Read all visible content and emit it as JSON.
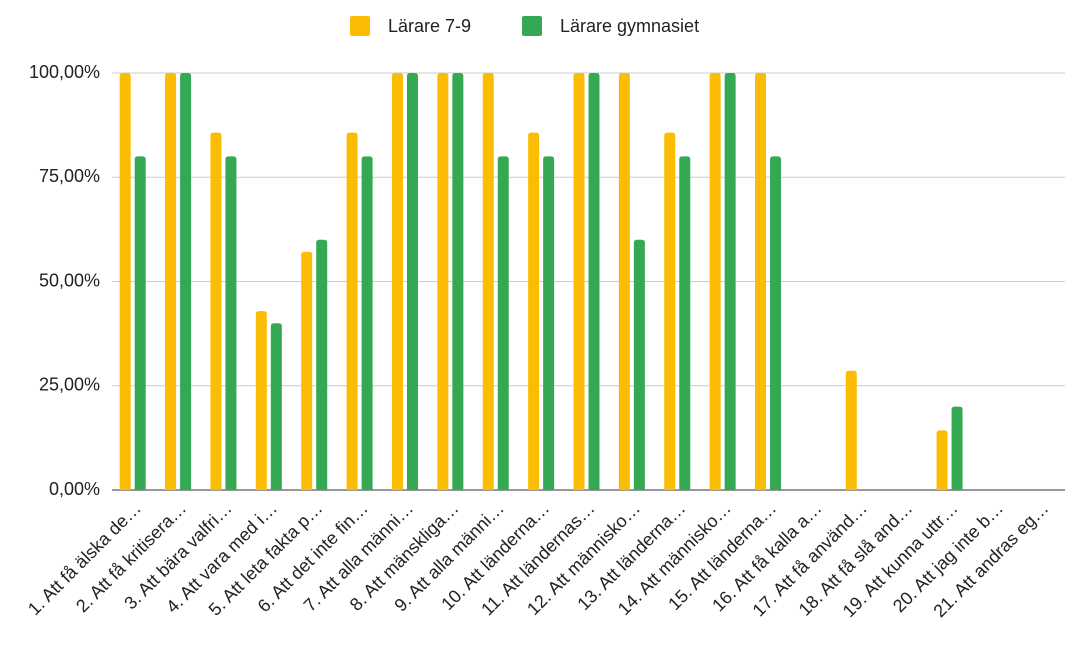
{
  "chart_data": {
    "type": "bar",
    "categories": [
      "1. Att få älska de…",
      "2. Att få kritisera…",
      "3. Att bära valfri…",
      "4. Att vara med i…",
      "5. Att leta fakta p…",
      "6. Att det inte fin…",
      "7. Att alla männi…",
      "8. Att mänskliga…",
      "9. Att alla männi…",
      "10. Att länderna…",
      "11. Att ländernas…",
      "12. Att människo…",
      "13. Att länderna…",
      "14. Att människo…",
      "15. Att länderna…",
      "16. Att få kalla a…",
      "17. Att få använd…",
      "18. Att få slå and…",
      "19. Att kunna uttr…",
      "20. Att jag inte b…",
      "21. Att andras eg…"
    ],
    "series": [
      {
        "name": "Lärare 7-9",
        "color": "#fbbc04",
        "values": [
          100,
          100,
          85.7,
          42.9,
          57.1,
          85.7,
          100,
          100,
          100,
          85.7,
          100,
          100,
          85.7,
          100,
          100,
          0,
          28.6,
          0,
          14.3,
          0,
          0
        ]
      },
      {
        "name": "Lärare gymnasiet",
        "color": "#34a853",
        "values": [
          80,
          100,
          80,
          40,
          60,
          80,
          100,
          100,
          80,
          80,
          100,
          60,
          80,
          100,
          80,
          0,
          0,
          0,
          20,
          0,
          0
        ]
      }
    ],
    "ylim": [
      0,
      100
    ],
    "yticks": [
      {
        "value": 0,
        "label": "0,00%"
      },
      {
        "value": 25,
        "label": "25,00%"
      },
      {
        "value": 50,
        "label": "50,00%"
      },
      {
        "value": 75,
        "label": "75,00%"
      },
      {
        "value": 100,
        "label": "100,00%"
      }
    ],
    "grid": true,
    "legend": "top"
  }
}
